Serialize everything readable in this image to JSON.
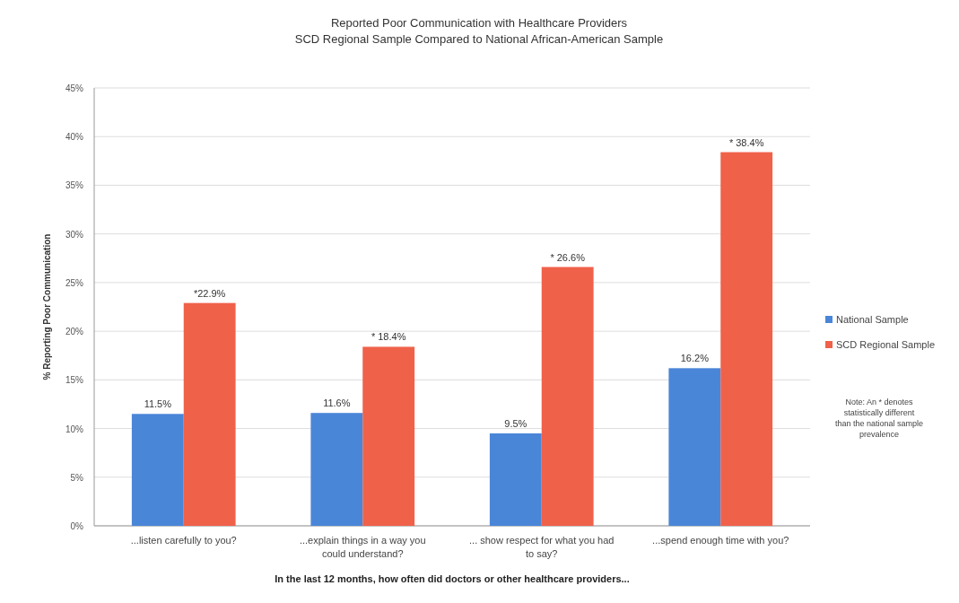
{
  "chart_data": {
    "type": "bar",
    "title": "Reported Poor Communication with Healthcare Providers",
    "subtitle": "SCD Regional Sample Compared to National African-American Sample",
    "xlabel": "In the last 12 months, how often did doctors or other healthcare providers...",
    "ylabel": "% Reporting Poor Communication",
    "categories": [
      "...listen carefully to you?",
      "...explain things in a way you could understand?",
      "... show respect for what you had to say?",
      "...spend enough time with you?"
    ],
    "series": [
      {
        "name": "National Sample",
        "color": "#4a86d8",
        "values": [
          11.5,
          11.6,
          9.5,
          16.2
        ],
        "value_labels": [
          "11.5%",
          "11.6%",
          "9.5%",
          "16.2%"
        ]
      },
      {
        "name": "SCD Regional Sample",
        "color": "#f0614a",
        "values": [
          22.9,
          18.4,
          26.6,
          38.4
        ],
        "value_labels": [
          "*22.9%",
          "* 18.4%",
          "* 26.6%",
          "* 38.4%"
        ]
      }
    ],
    "ylim": [
      0,
      45
    ],
    "yticks": [
      {
        "value": 0,
        "label": "0%"
      },
      {
        "value": 5,
        "label": "5%"
      },
      {
        "value": 10,
        "label": "10%"
      },
      {
        "value": 15,
        "label": "15%"
      },
      {
        "value": 20,
        "label": "20%"
      },
      {
        "value": 25,
        "label": "25%"
      },
      {
        "value": 30,
        "label": "30%"
      },
      {
        "value": 35,
        "label": "35%"
      },
      {
        "value": 40,
        "label": "40%"
      },
      {
        "value": 45,
        "label": "45%"
      }
    ],
    "grid": "y",
    "legend": "right",
    "annotations": [
      "Note: An * denotes statistically different than the national sample prevalence"
    ]
  }
}
